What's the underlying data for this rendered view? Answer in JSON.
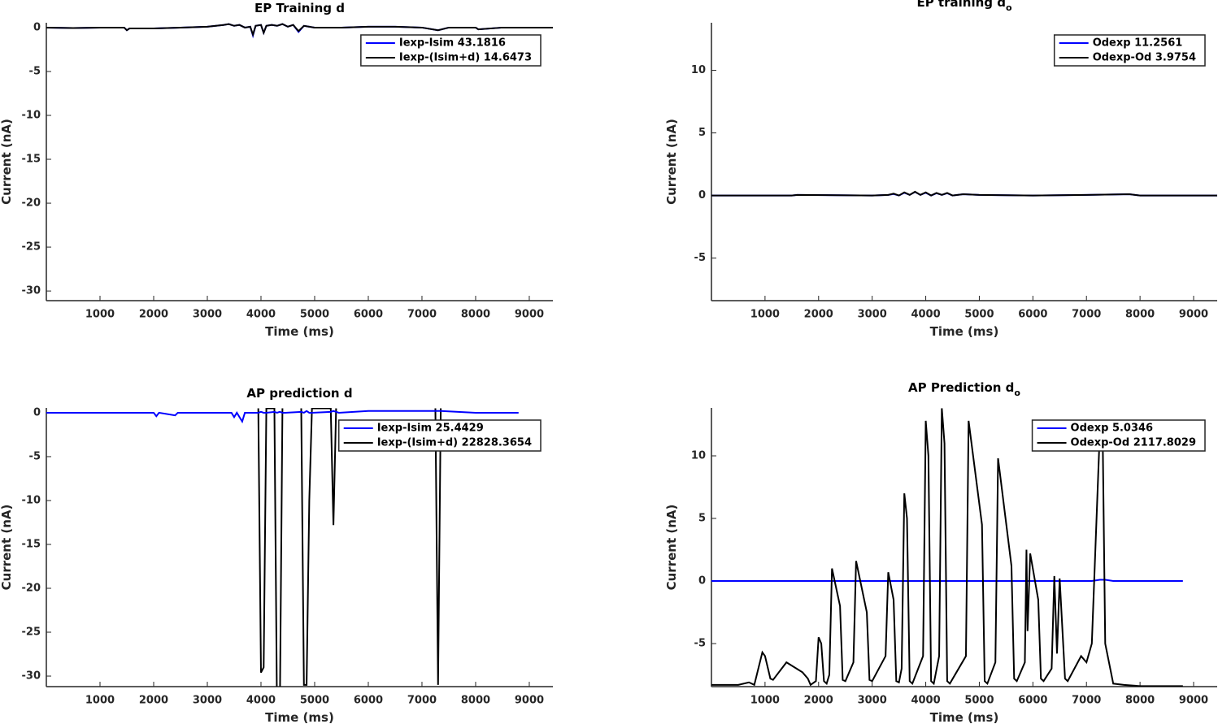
{
  "chart_data": [
    {
      "type": "line",
      "title": "EP Training d",
      "xlabel": "Time (ms)",
      "ylabel": "Current (nA)",
      "x": [
        0,
        500,
        1000,
        1450,
        1500,
        1550,
        2000,
        2500,
        3000,
        3300,
        3400,
        3500,
        3600,
        3700,
        3800,
        3850,
        3900,
        4000,
        4050,
        4100,
        4200,
        4300,
        4400,
        4500,
        4600,
        4700,
        4800,
        4900,
        5000,
        5500,
        6000,
        6500,
        7000,
        7300,
        7500,
        8000,
        8050,
        8500,
        9440
      ],
      "series": [
        {
          "name": "Iexp-Isim 43.1816",
          "color": "#0000ff",
          "values": [
            0,
            -0.05,
            0,
            0,
            -0.3,
            -0.1,
            -0.1,
            0,
            0.1,
            0.3,
            0.4,
            0.2,
            0.3,
            0,
            0.1,
            -0.9,
            0.2,
            0.3,
            -0.6,
            0.2,
            0.3,
            0.2,
            0.4,
            0.1,
            0.3,
            -0.5,
            0.2,
            0.1,
            0,
            0,
            0.1,
            0.1,
            0,
            -0.3,
            0,
            0,
            -0.2,
            0,
            0
          ]
        },
        {
          "name": "Iexp-(Isim+d) 14.6473",
          "color": "#000000",
          "values": [
            0,
            -0.05,
            0,
            0,
            -0.3,
            -0.1,
            -0.1,
            0,
            0.1,
            0.3,
            0.4,
            0.2,
            0.3,
            0,
            0.1,
            -0.8,
            0.2,
            0.3,
            -0.6,
            0.2,
            0.3,
            0.2,
            0.4,
            0.1,
            0.3,
            -0.4,
            0.2,
            0.1,
            0,
            0,
            0.1,
            0.1,
            0,
            -0.3,
            0,
            0,
            -0.2,
            0,
            0
          ]
        }
      ],
      "xlim": [
        0,
        9440
      ],
      "ylim": [
        -31.1,
        0.55
      ],
      "xticks": [
        1000,
        2000,
        3000,
        4000,
        5000,
        6000,
        7000,
        8000,
        9000
      ],
      "yticks": [
        -30,
        -25,
        -20,
        -15,
        -10,
        -5,
        0
      ],
      "legend": "northeast"
    },
    {
      "type": "line",
      "title": "EP training d",
      "title_subscript": "o",
      "xlabel": "Time (ms)",
      "ylabel": "Current (nA)",
      "x": [
        0,
        1500,
        1600,
        3000,
        3300,
        3400,
        3500,
        3600,
        3700,
        3800,
        3900,
        4000,
        4100,
        4200,
        4300,
        4400,
        4500,
        4700,
        5000,
        6000,
        7000,
        7800,
        8000,
        9440
      ],
      "series": [
        {
          "name": "Odexp 11.2561",
          "color": "#0000ff",
          "values": [
            0,
            0,
            0.05,
            0,
            0.05,
            0.12,
            0,
            0.22,
            0.05,
            0.28,
            0.05,
            0.22,
            0,
            0.18,
            0.05,
            0.18,
            0,
            0.1,
            0.05,
            0,
            0.05,
            0.1,
            0,
            0
          ]
        },
        {
          "name": "Odexp-Od 3.9754",
          "color": "#000000",
          "values": [
            0,
            0,
            0.05,
            0,
            0.05,
            0.15,
            0,
            0.25,
            0.05,
            0.3,
            0.05,
            0.25,
            0,
            0.2,
            0.05,
            0.2,
            0,
            0.1,
            0.05,
            0,
            0.05,
            0.1,
            0,
            0
          ]
        }
      ],
      "xlim": [
        0,
        9440
      ],
      "ylim": [
        -8.4,
        13.8
      ],
      "xticks": [
        1000,
        2000,
        3000,
        4000,
        5000,
        6000,
        7000,
        8000,
        9000
      ],
      "yticks": [
        -5,
        0,
        5,
        10
      ],
      "legend": "northeast"
    },
    {
      "type": "line",
      "title": "AP prediction d",
      "xlabel": "Time (ms)",
      "ylabel": "Current (nA)",
      "x": [
        0,
        500,
        1000,
        1500,
        2000,
        2050,
        2100,
        2400,
        2450,
        2500,
        3000,
        3450,
        3500,
        3550,
        3650,
        3700,
        3750,
        3950,
        4000,
        4050,
        4100,
        4250,
        4300,
        4350,
        4400,
        4450,
        4750,
        4800,
        4850,
        4900,
        4950,
        5300,
        5350,
        5400,
        5450,
        6000,
        6500,
        7000,
        7200,
        7250,
        7300,
        7350,
        8000,
        8800
      ],
      "series": [
        {
          "name": "Iexp-Isim 25.4429",
          "color": "#0000ff",
          "values": [
            0,
            0,
            0,
            0,
            0,
            -0.4,
            0,
            -0.3,
            0,
            0,
            0,
            0,
            -0.5,
            0,
            -1,
            0,
            0,
            0,
            0.1,
            0,
            0,
            0.1,
            0,
            0.1,
            0,
            0,
            0.1,
            0,
            0.2,
            0,
            0,
            0.1,
            0.2,
            0.1,
            0,
            0.2,
            0.2,
            0.2,
            0.2,
            0.2,
            0.2,
            0.2,
            0,
            0
          ]
        },
        {
          "name": "Iexp-(Isim+d) 22828.3654",
          "color": "#000000",
          "values": [
            null,
            null,
            null,
            null,
            null,
            null,
            null,
            null,
            null,
            null,
            null,
            null,
            null,
            null,
            null,
            null,
            null,
            0.5,
            -29.6,
            -29,
            0.5,
            0.5,
            -35,
            -35,
            0.5,
            null,
            0.5,
            -31,
            -31,
            -10,
            0.5,
            0.5,
            -12.8,
            0.5,
            null,
            null,
            null,
            null,
            null,
            0.5,
            -31,
            0.5,
            null,
            null
          ]
        }
      ],
      "xlim": [
        0,
        9440
      ],
      "ylim": [
        -31.2,
        0.55
      ],
      "xticks": [
        1000,
        2000,
        3000,
        4000,
        5000,
        6000,
        7000,
        8000,
        9000
      ],
      "yticks": [
        -30,
        -25,
        -20,
        -15,
        -10,
        -5,
        0
      ],
      "legend": "northeast",
      "series_order": "reverse"
    },
    {
      "type": "line",
      "title": "AP Prediction d",
      "title_subscript": "o",
      "xlabel": "Time (ms)",
      "ylabel": "Current (nA)",
      "x": [
        0,
        500,
        700,
        800,
        950,
        1000,
        1100,
        1150,
        1400,
        1700,
        1800,
        1850,
        1950,
        2000,
        2050,
        2100,
        2150,
        2200,
        2250,
        2400,
        2450,
        2500,
        2650,
        2700,
        2900,
        2950,
        3000,
        3250,
        3300,
        3400,
        3450,
        3500,
        3550,
        3600,
        3650,
        3700,
        3750,
        3950,
        4000,
        4050,
        4100,
        4150,
        4250,
        4300,
        4350,
        4400,
        4450,
        4750,
        4800,
        5050,
        5100,
        5150,
        5300,
        5350,
        5600,
        5650,
        5700,
        5850,
        5880,
        5900,
        5950,
        6100,
        6150,
        6200,
        6350,
        6400,
        6450,
        6500,
        6600,
        6650,
        6900,
        7000,
        7100,
        7250,
        7300,
        7350,
        7500,
        7700,
        8000,
        8800
      ],
      "series": [
        {
          "name": "Odexp 5.0346",
          "color": "#0000ff",
          "values": [
            0,
            0,
            0,
            0,
            0,
            0,
            0,
            0,
            0,
            0,
            0,
            0,
            0,
            0,
            0,
            0,
            0,
            0,
            0,
            0,
            0,
            0,
            0,
            0,
            0,
            0,
            0,
            0,
            0,
            0,
            0,
            0,
            0,
            0,
            0,
            0,
            0,
            0,
            0,
            0,
            0,
            0,
            0,
            0,
            0,
            0,
            0,
            0,
            0,
            0,
            0,
            0,
            0,
            0,
            0,
            0,
            0,
            0,
            0,
            0,
            0,
            0,
            0,
            0,
            0,
            0,
            0,
            0,
            0,
            0,
            0,
            0,
            0,
            0.1,
            0.1,
            0.1,
            0,
            0,
            0,
            0
          ]
        },
        {
          "name": "Odexp-Od 2117.8029",
          "color": "#000000",
          "values": [
            -8.3,
            -8.3,
            -8.1,
            -8.3,
            -5.7,
            -6,
            -7.8,
            -7.9,
            -6.5,
            -7.3,
            -7.8,
            -8.3,
            -8,
            -4.5,
            -5,
            -8,
            -8.2,
            -7.5,
            1,
            -2,
            -7.9,
            -8,
            -6.5,
            1.6,
            -2.5,
            -7.9,
            -8,
            -6,
            0.7,
            -1.5,
            -8,
            -8.1,
            -7,
            7,
            5,
            -8,
            -8.2,
            -6,
            12.8,
            10,
            -8,
            -8.2,
            -6,
            13.8,
            11,
            -8,
            -8.2,
            -6,
            12.8,
            4.5,
            -8,
            -8.2,
            -6.5,
            9.8,
            1.2,
            -7.8,
            -8,
            -6.5,
            2.5,
            -4,
            2.2,
            -1.5,
            -7.8,
            -8,
            -7,
            0.4,
            -5.8,
            0.2,
            -7.8,
            -8,
            -6,
            -6.5,
            -5,
            12,
            12.5,
            -5,
            -8.2,
            -8.3,
            -8.4,
            -8.4
          ]
        }
      ],
      "xlim": [
        0,
        9440
      ],
      "ylim": [
        -8.44,
        13.83
      ],
      "xticks": [
        1000,
        2000,
        3000,
        4000,
        5000,
        6000,
        7000,
        8000,
        9000
      ],
      "yticks": [
        -5,
        0,
        5,
        10
      ],
      "legend": "northeast"
    }
  ]
}
